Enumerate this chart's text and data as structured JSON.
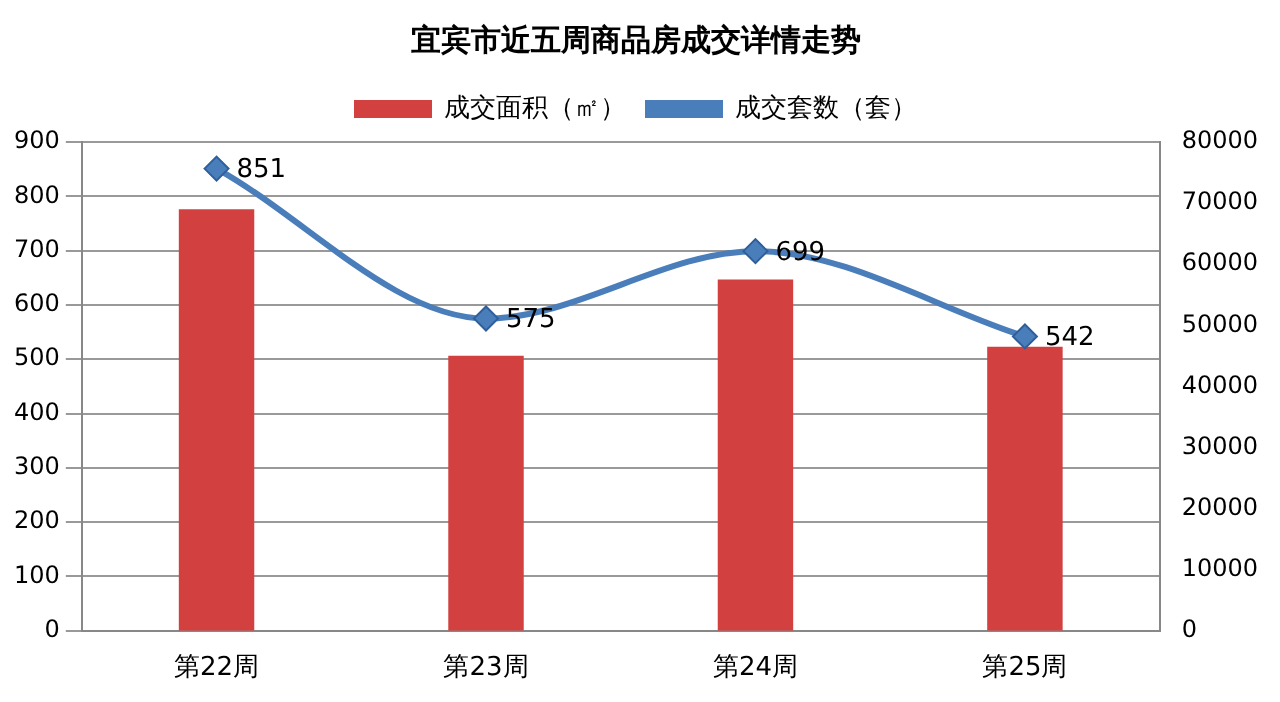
{
  "chart_data": {
    "type": "bar",
    "title": "宜宾市近五周商品房成交详情走势",
    "categories": [
      "第22周",
      "第23周",
      "第24周",
      "第25周"
    ],
    "series": [
      {
        "name": "成交面积（㎡）",
        "type": "bar",
        "axis": "y2",
        "color": "#d24040",
        "values": [
          69000,
          45000,
          57500,
          46500
        ]
      },
      {
        "name": "成交套数（套）",
        "type": "line",
        "axis": "y",
        "color": "#4a7ebb",
        "values": [
          851,
          575,
          699,
          542
        ],
        "value_labels": [
          "851",
          "575",
          "699",
          "542"
        ]
      }
    ],
    "ylim": [
      0,
      900
    ],
    "yticks": [
      0,
      100,
      200,
      300,
      400,
      500,
      600,
      700,
      800,
      900
    ],
    "y2lim": [
      0,
      80000
    ],
    "y2ticks": [
      0,
      10000,
      20000,
      30000,
      40000,
      50000,
      60000,
      70000,
      80000
    ],
    "grid": "y",
    "legend": "top",
    "marker": "diamond",
    "line_style": "solid"
  }
}
